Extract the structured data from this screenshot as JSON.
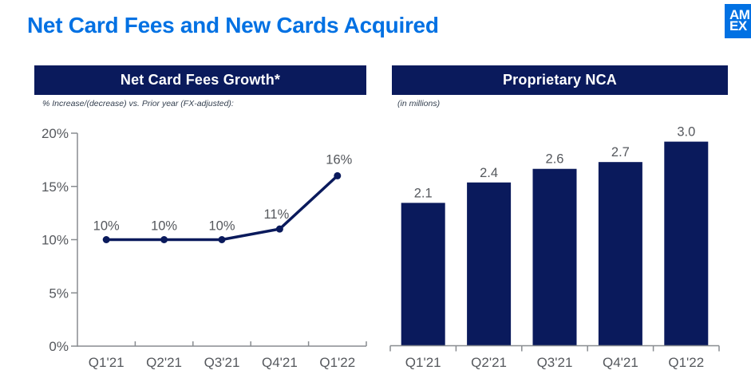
{
  "header": {
    "title": "Net Card Fees and New Cards Acquired"
  },
  "logo": {
    "top": "AM",
    "bottom": "EX"
  },
  "colors": {
    "accent_blue": "#0171E3",
    "navy": "#0A1A5C",
    "label_gray": "#55585D",
    "axis_gray": "#888C90",
    "white": "#FFFFFF"
  },
  "chart_data": [
    {
      "type": "line",
      "title": "Net Card Fees Growth*",
      "subtitle": "% Increase/(decrease) vs. Prior year (FX-adjusted):",
      "categories": [
        "Q1'21",
        "Q2'21",
        "Q3'21",
        "Q4'21",
        "Q1'22"
      ],
      "values": [
        10,
        10,
        10,
        11,
        16
      ],
      "data_labels": [
        "10%",
        "10%",
        "10%",
        "11%",
        "16%"
      ],
      "ylim": [
        0,
        20
      ],
      "yticks": [
        0,
        5,
        10,
        15,
        20
      ],
      "ytick_labels": [
        "0%",
        "5%",
        "10%",
        "15%",
        "20%"
      ],
      "grid": false,
      "legend": "none"
    },
    {
      "type": "bar",
      "title": "Proprietary NCA",
      "subtitle": "(in millions)",
      "categories": [
        "Q1'21",
        "Q2'21",
        "Q3'21",
        "Q4'21",
        "Q1'22"
      ],
      "values": [
        2.1,
        2.4,
        2.6,
        2.7,
        3.0
      ],
      "data_labels": [
        "2.1",
        "2.4",
        "2.6",
        "2.7",
        "3.0"
      ],
      "ylim": [
        0,
        3.2
      ],
      "grid": false,
      "legend": "none"
    }
  ]
}
